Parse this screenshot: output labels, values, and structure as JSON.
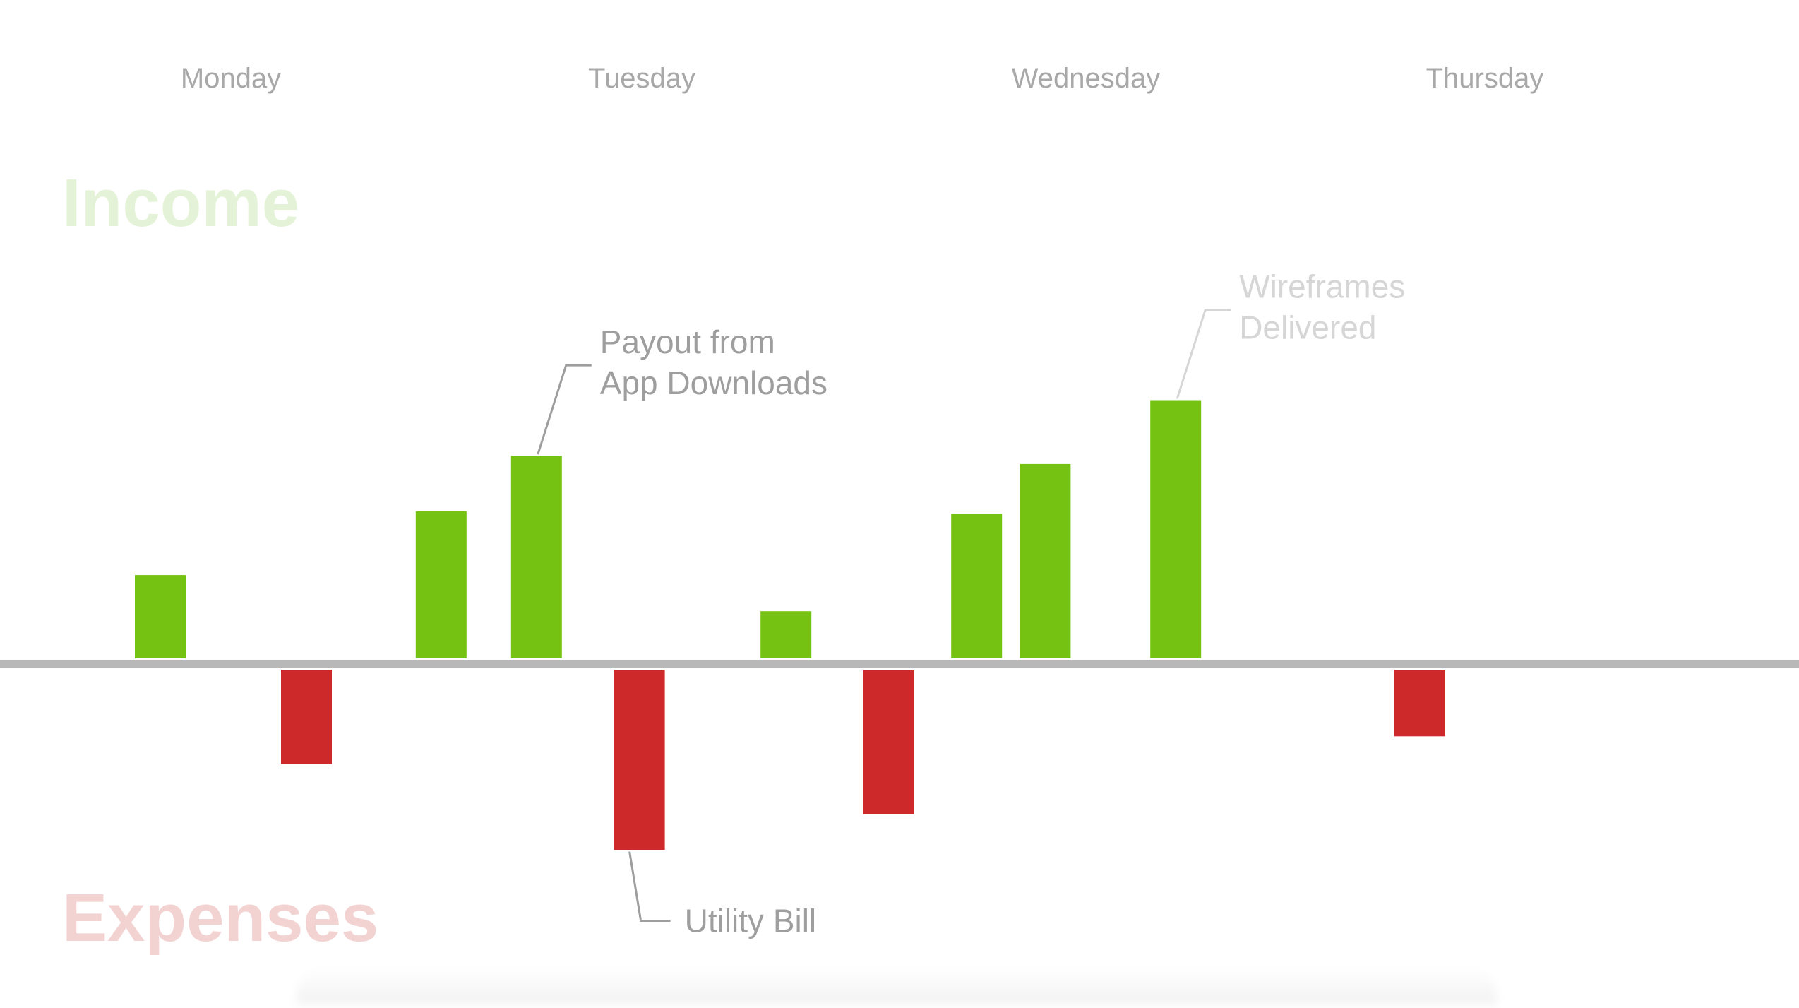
{
  "chart_data": {
    "type": "bar",
    "title": "",
    "xlabel": "",
    "ylabel": "",
    "ylim": [
      -7,
      10
    ],
    "grid": false,
    "legend": "none",
    "categories": [
      "Monday",
      "Tuesday",
      "Wednesday",
      "Thursday"
    ],
    "sections": {
      "income_label": "Income",
      "expenses_label": "Expenses"
    },
    "bars": [
      {
        "day": "Monday",
        "slot": 0.26,
        "value": 3.0
      },
      {
        "day": "Monday",
        "slot": 0.72,
        "value": -3.4
      },
      {
        "day": "Tuesday",
        "slot": 0.12,
        "value": 5.3
      },
      {
        "day": "Tuesday",
        "slot": 0.37,
        "value": 7.3
      },
      {
        "day": "Tuesday",
        "slot": 0.64,
        "value": -6.5
      },
      {
        "day": "Wednesday",
        "slot": 0.08,
        "value": 1.7
      },
      {
        "day": "Wednesday",
        "slot": 0.35,
        "value": -5.2
      },
      {
        "day": "Wednesday",
        "slot": 0.58,
        "value": 5.2
      },
      {
        "day": "Wednesday",
        "slot": 0.76,
        "value": 7.0
      },
      {
        "day": "Thursday",
        "slot": 0.18,
        "value": 9.3
      },
      {
        "day": "Thursday",
        "slot": 0.72,
        "value": -2.4
      }
    ],
    "annotations": [
      {
        "bar": 3,
        "text": [
          "Payout from",
          "App Downloads"
        ],
        "color": "#9e9e9e"
      },
      {
        "bar": 4,
        "text": [
          "Utility Bill"
        ],
        "color": "#9e9e9e"
      },
      {
        "bar": 9,
        "text": [
          "Wireframes",
          "Delivered"
        ],
        "color": "#d6d6d6"
      }
    ],
    "colors": {
      "income": "#76c212",
      "expense": "#cd292a",
      "baseline": "#b8b8b8"
    }
  }
}
